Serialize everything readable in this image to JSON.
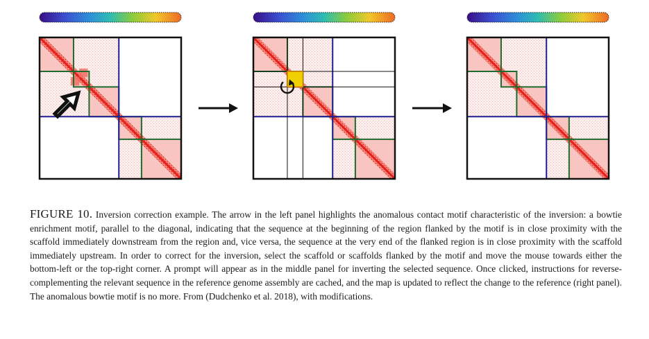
{
  "figure": {
    "label": "FIGURE 10.",
    "caption": "Inversion correction example. The arrow in the left panel highlights the anomalous contact motif characteristic of the inversion: a bowtie enrichment motif, parallel to the diagonal, indicating that the sequence at the beginning of the region flanked by the motif is in close proximity with the scaffold immediately downstream from the region and, vice versa, the sequence at the very end of the flanked region is in close proximity with the scaffold immediately upstream. In order to correct for the inversion, select the scaffold or scaffolds flanked by the motif and move the mouse towards either the bottom-left or the top-right corner. A prompt will appear as in the middle panel for inverting the selected sequence. Once clicked, instructions for reverse-complementing the relevant sequence in the reference genome assembly are cached, and the map is updated to reflect the change to the reference (right panel). The anomalous bowtie motif is no more. From (Dudchenko et al. 2018), with modifications."
  },
  "panels": [
    {
      "name": "left",
      "annotation": "diagonal-arrow-icon"
    },
    {
      "name": "middle",
      "annotation": "rotate-icon"
    },
    {
      "name": "right",
      "annotation": "none"
    }
  ],
  "icons": {
    "panel_arrow": "right-arrow-icon",
    "selection_marker": "diagonal-arrow-icon",
    "invert_prompt": "rotate-icon"
  },
  "colors": {
    "heatmap_hot": "#e4221b",
    "heatmap_light": "#fbe3e0",
    "scaffold_border": "#1d6b2e",
    "chromosome_border": "#1f1f8f",
    "selection_fill": "#f0d000",
    "frame": "#111111",
    "bar_colors": [
      "#3a0f87",
      "#2e6fd9",
      "#2fbcb0",
      "#8ccc3b",
      "#f0c72a",
      "#ee7a25"
    ]
  }
}
